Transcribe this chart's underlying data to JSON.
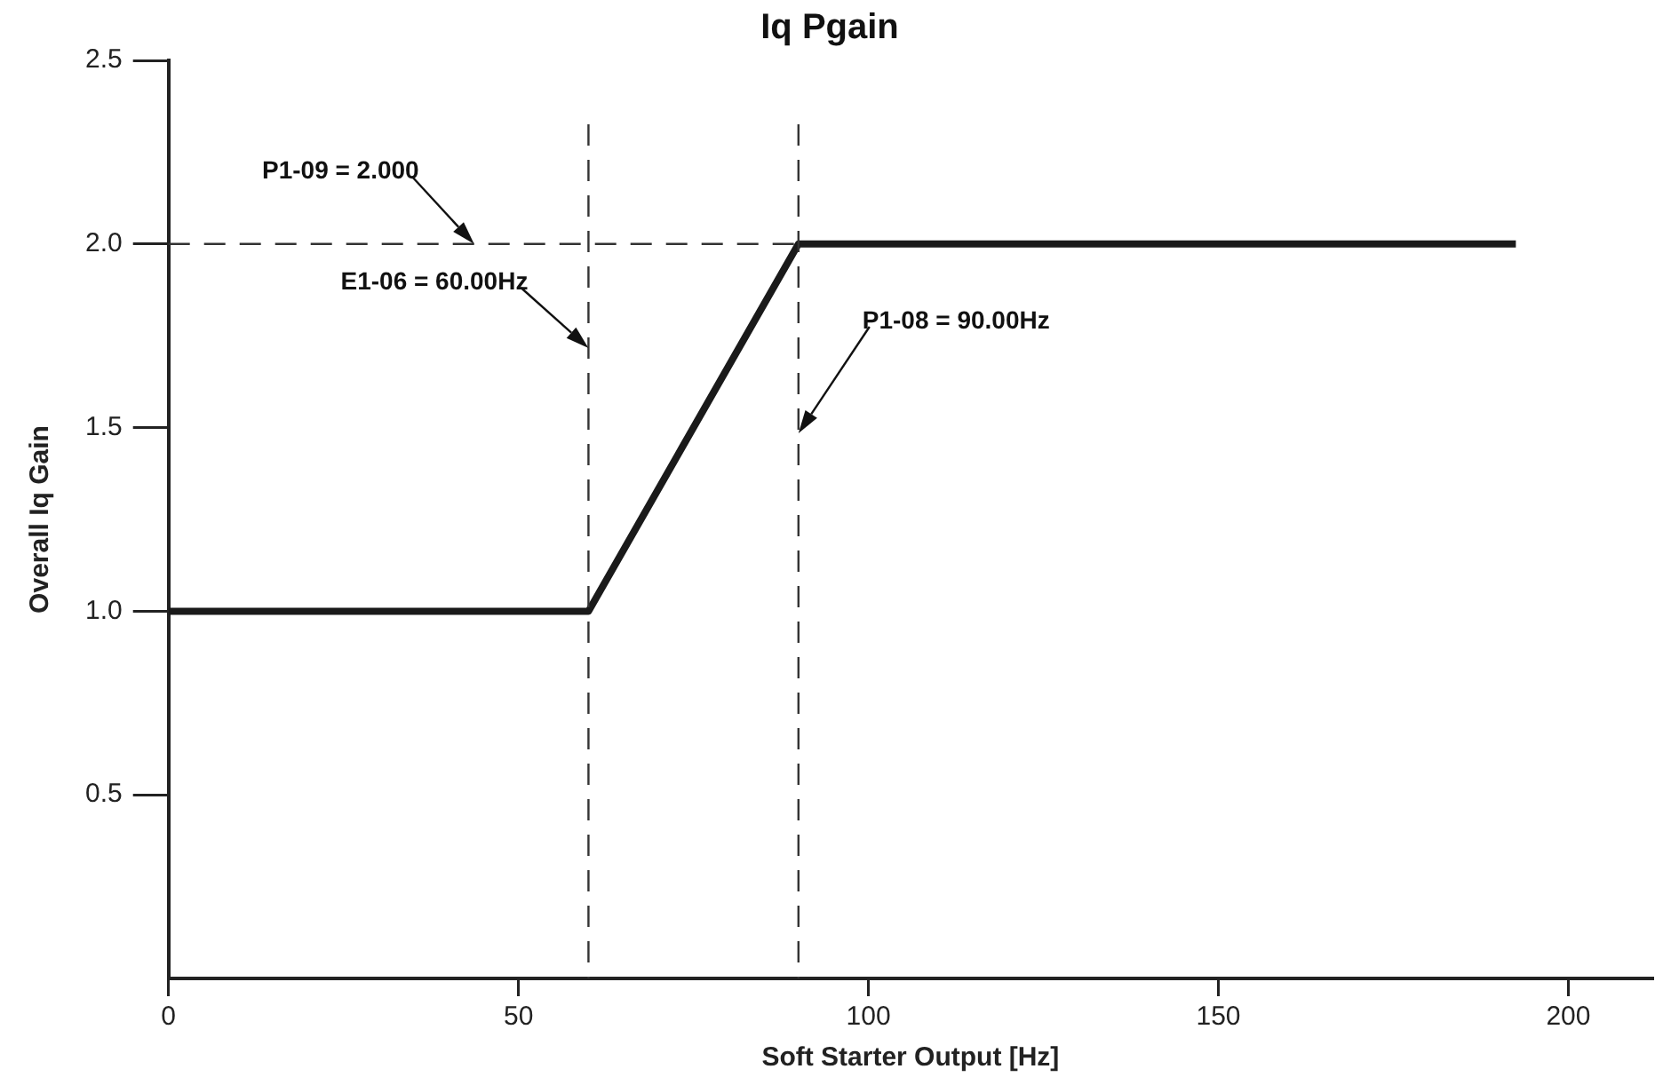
{
  "chart_data": {
    "type": "line",
    "title": "Iq Pgain",
    "xlabel": "Soft Starter Output [Hz]",
    "ylabel": "Overall Iq Gain",
    "x": [
      0,
      60,
      90,
      192.5
    ],
    "values": [
      1,
      1,
      2,
      2
    ],
    "color": "#1a1a1a",
    "xlim": [
      0,
      212
    ],
    "xticks": [
      0,
      50,
      100,
      150,
      200
    ],
    "ylim": [
      0,
      2.5
    ],
    "yticks": [
      0.5,
      {
        "value": 1,
        "label": "1.0"
      },
      1.5,
      {
        "value": 2,
        "label": "2.0"
      },
      2.5
    ],
    "ref_lines": [
      {
        "axis": "y",
        "value": 2.0,
        "label": "P1-09 = 2.000",
        "line_style": "dashed",
        "color": "#333333"
      },
      {
        "axis": "x",
        "value": 60,
        "label": "E1-06 = 60.00Hz",
        "line_style": "dashed",
        "color": "#333333"
      },
      {
        "axis": "x",
        "value": 90,
        "label": "P1-08 = 90.00Hz",
        "line_style": "dashed",
        "color": "#333333"
      }
    ],
    "grid": false,
    "legend": false,
    "marker": "none",
    "line_style": "solid"
  }
}
